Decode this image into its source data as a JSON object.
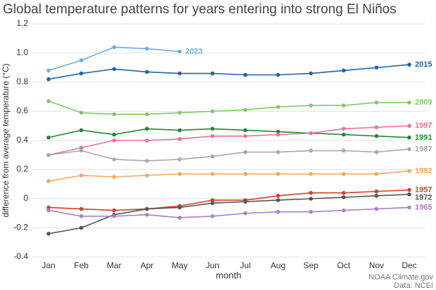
{
  "chart_data": {
    "type": "line",
    "title": "Global temperature patterns for years entering into strong El Niños",
    "xlabel": "month",
    "ylabel": "difference from average temperature (°C)",
    "categories": [
      "Jan",
      "Feb",
      "Mar",
      "Apr",
      "May",
      "Jun",
      "Jul",
      "Aug",
      "Sep",
      "Oct",
      "Nov",
      "Dec"
    ],
    "ylim": [
      -0.4,
      1.2
    ],
    "yticks": [
      -0.4,
      -0.2,
      0,
      0.2,
      0.4,
      0.6,
      0.8,
      {
        "value": 1.0,
        "label": "1.0"
      },
      1.2
    ],
    "grid": true,
    "series": [
      {
        "name": "2023",
        "color": "#6aaee0",
        "values": [
          0.88,
          0.95,
          1.04,
          1.03,
          1.01,
          null,
          null,
          null,
          null,
          null,
          null,
          null
        ]
      },
      {
        "name": "2015",
        "color": "#1f64a8",
        "values": [
          0.82,
          0.86,
          0.89,
          0.87,
          0.86,
          0.86,
          0.85,
          0.85,
          0.86,
          0.88,
          0.9,
          0.92
        ]
      },
      {
        "name": "2009",
        "color": "#80c860",
        "values": [
          0.67,
          0.59,
          0.58,
          0.58,
          0.59,
          0.6,
          0.61,
          0.63,
          0.64,
          0.64,
          0.66,
          0.66
        ]
      },
      {
        "name": "1991",
        "color": "#1e8a2e",
        "values": [
          0.42,
          0.47,
          0.44,
          0.48,
          0.47,
          0.48,
          0.47,
          0.46,
          0.45,
          0.44,
          0.43,
          0.42
        ]
      },
      {
        "name": "1997",
        "color": "#e8729a",
        "values": [
          0.3,
          0.35,
          0.4,
          0.4,
          0.41,
          0.43,
          0.43,
          0.44,
          0.45,
          0.48,
          0.49,
          0.5
        ]
      },
      {
        "name": "1987",
        "color": "#a8a8a8",
        "values": [
          0.3,
          0.33,
          0.27,
          0.26,
          0.27,
          0.29,
          0.32,
          0.32,
          0.33,
          0.33,
          0.32,
          0.34
        ]
      },
      {
        "name": "1982",
        "color": "#f5a860",
        "values": [
          0.12,
          0.16,
          0.15,
          0.16,
          0.17,
          0.17,
          0.17,
          0.17,
          0.17,
          0.17,
          0.17,
          0.19
        ]
      },
      {
        "name": "1957",
        "color": "#d0402a",
        "values": [
          -0.06,
          -0.07,
          -0.08,
          -0.07,
          -0.05,
          -0.01,
          -0.01,
          0.02,
          0.04,
          0.04,
          0.05,
          0.06
        ]
      },
      {
        "name": "1972",
        "color": "#555555",
        "values": [
          -0.24,
          -0.2,
          -0.11,
          -0.07,
          -0.06,
          -0.03,
          -0.02,
          -0.01,
          0.0,
          0.01,
          0.02,
          0.03
        ]
      },
      {
        "name": "1965",
        "color": "#a880cc",
        "values": [
          -0.08,
          -0.12,
          -0.12,
          -0.11,
          -0.13,
          -0.12,
          -0.1,
          -0.09,
          -0.09,
          -0.08,
          -0.07,
          -0.06
        ]
      }
    ],
    "credits": [
      "NOAA Climate.gov",
      "Data: NCEI"
    ]
  }
}
